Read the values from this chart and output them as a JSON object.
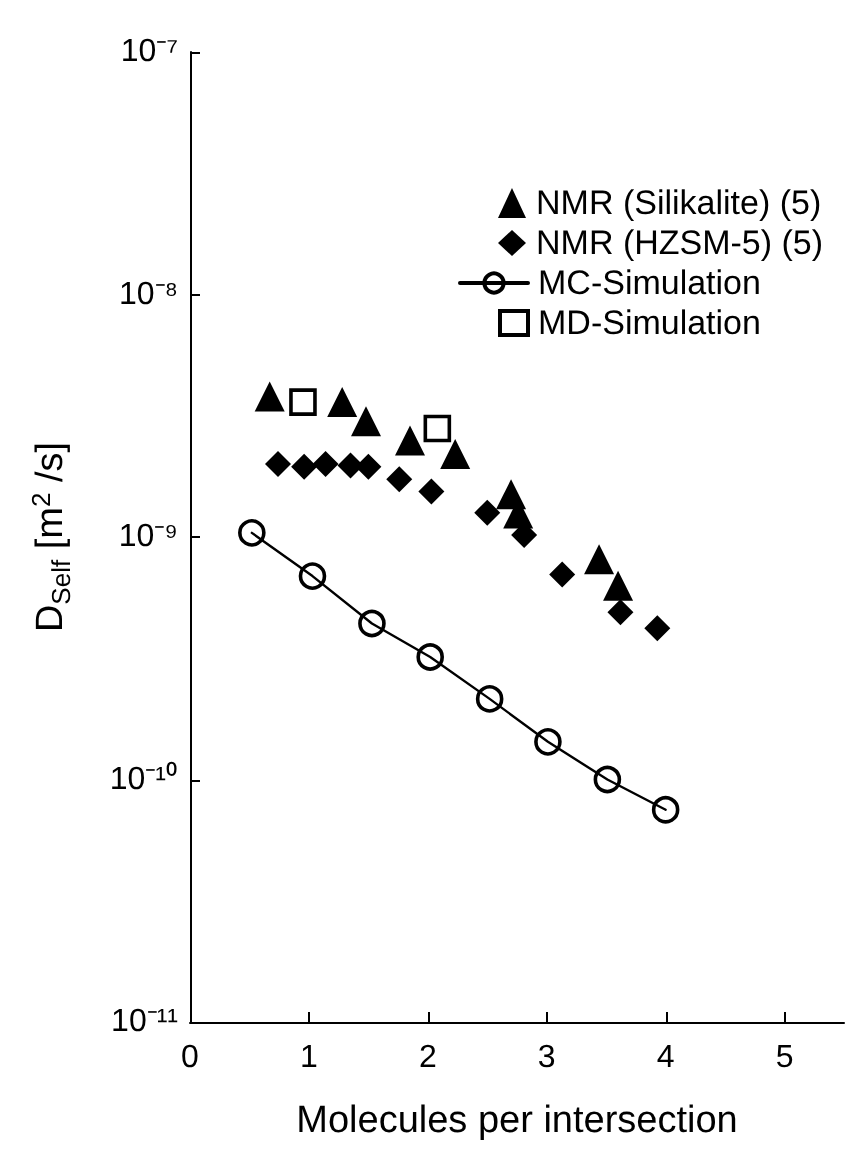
{
  "chart_data": {
    "type": "scatter",
    "xlabel": "Molecules per intersection",
    "ylabel": "D$_{Self}$ [m$^{2}$ /s]",
    "log": "y",
    "grid": false,
    "legend": "top right",
    "xlim": [
      0,
      5.5
    ],
    "xticks": [
      0,
      1,
      2,
      3,
      4,
      5
    ],
    "ylim": [
      1e-11,
      1e-07
    ],
    "yticks": [
      {
        "value": 1e-11,
        "label": "10⁻¹¹"
      },
      {
        "value": 1e-10,
        "label": "10⁻¹⁰"
      },
      {
        "value": 1e-09,
        "label": "10⁻⁹"
      },
      {
        "value": 1e-08,
        "label": "10⁻⁸"
      },
      {
        "value": 1e-07,
        "label": "10⁻⁷"
      }
    ],
    "series": [
      {
        "name": "NMR (Silikalite) (5)",
        "type": "scatter",
        "marker": "triangle",
        "color": "#000000",
        "x": [
          0.67,
          1.28,
          1.48,
          1.85,
          2.23,
          2.7,
          2.76,
          3.44,
          3.6
        ],
        "values": [
          3.8e-09,
          3.6e-09,
          3e-09,
          2.5e-09,
          2.2e-09,
          1.5e-09,
          1.25e-09,
          8.1e-10,
          6.3e-10
        ]
      },
      {
        "name": "NMR (HZSM-5) (5)",
        "type": "scatter",
        "marker": "diamond",
        "color": "#000000",
        "x": [
          0.74,
          0.96,
          1.14,
          1.35,
          1.5,
          1.76,
          2.03,
          2.5,
          2.81,
          3.13,
          3.62,
          3.93
        ],
        "values": [
          2e-09,
          1.95e-09,
          2e-09,
          1.97e-09,
          1.95e-09,
          1.73e-09,
          1.54e-09,
          1.26e-09,
          1.02e-09,
          7e-10,
          4.9e-10,
          4.2e-10
        ]
      },
      {
        "name": "MC-Simulation",
        "type": "line",
        "marker": "circle",
        "line_style": "solid",
        "color": "#000000",
        "x": [
          0.52,
          1.03,
          1.53,
          2.02,
          2.52,
          3.01,
          3.51,
          4.0
        ],
        "values": [
          1.04e-09,
          6.9e-10,
          4.4e-10,
          3.2e-10,
          2.15e-10,
          1.43e-10,
          1e-10,
          7.5e-11
        ]
      },
      {
        "name": "MD-Simulation",
        "type": "scatter",
        "marker": "square",
        "color": "#000000",
        "x": [
          0.95,
          2.08
        ],
        "values": [
          3.6e-09,
          2.8e-09
        ]
      }
    ]
  }
}
